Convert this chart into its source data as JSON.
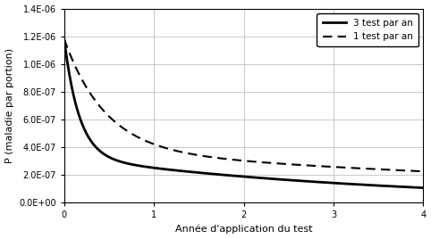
{
  "title": "",
  "xlabel": "Année d'application du test",
  "ylabel": "P (maladie par portion)",
  "xlim": [
    0,
    4
  ],
  "ylim": [
    0,
    1.4e-06
  ],
  "yticks": [
    0,
    2e-07,
    4e-07,
    6e-07,
    8e-07,
    1e-06,
    1.2e-06,
    1.4e-06
  ],
  "ytick_labels": [
    "0.0E+00",
    "2.0E-07",
    "4.0E-07",
    "6.0E-07",
    "8.0E-07",
    "1.0E-06",
    "1.2E-06",
    "1.4E-06"
  ],
  "xticks": [
    0,
    1,
    2,
    3,
    4
  ],
  "legend_solid": "3 test par an",
  "legend_dashed": "1 test par an",
  "line_color": "#000000",
  "background_color": "#ffffff",
  "grid_color": "#c0c0c0",
  "solid_params": {
    "A1": 8.5e-07,
    "k1": 6.0,
    "A2": 3.3e-07,
    "k2": 0.28
  },
  "dashed_params": {
    "A1": 8e-07,
    "k1": 2.2,
    "A2": 3.8e-07,
    "k2": 0.13
  }
}
